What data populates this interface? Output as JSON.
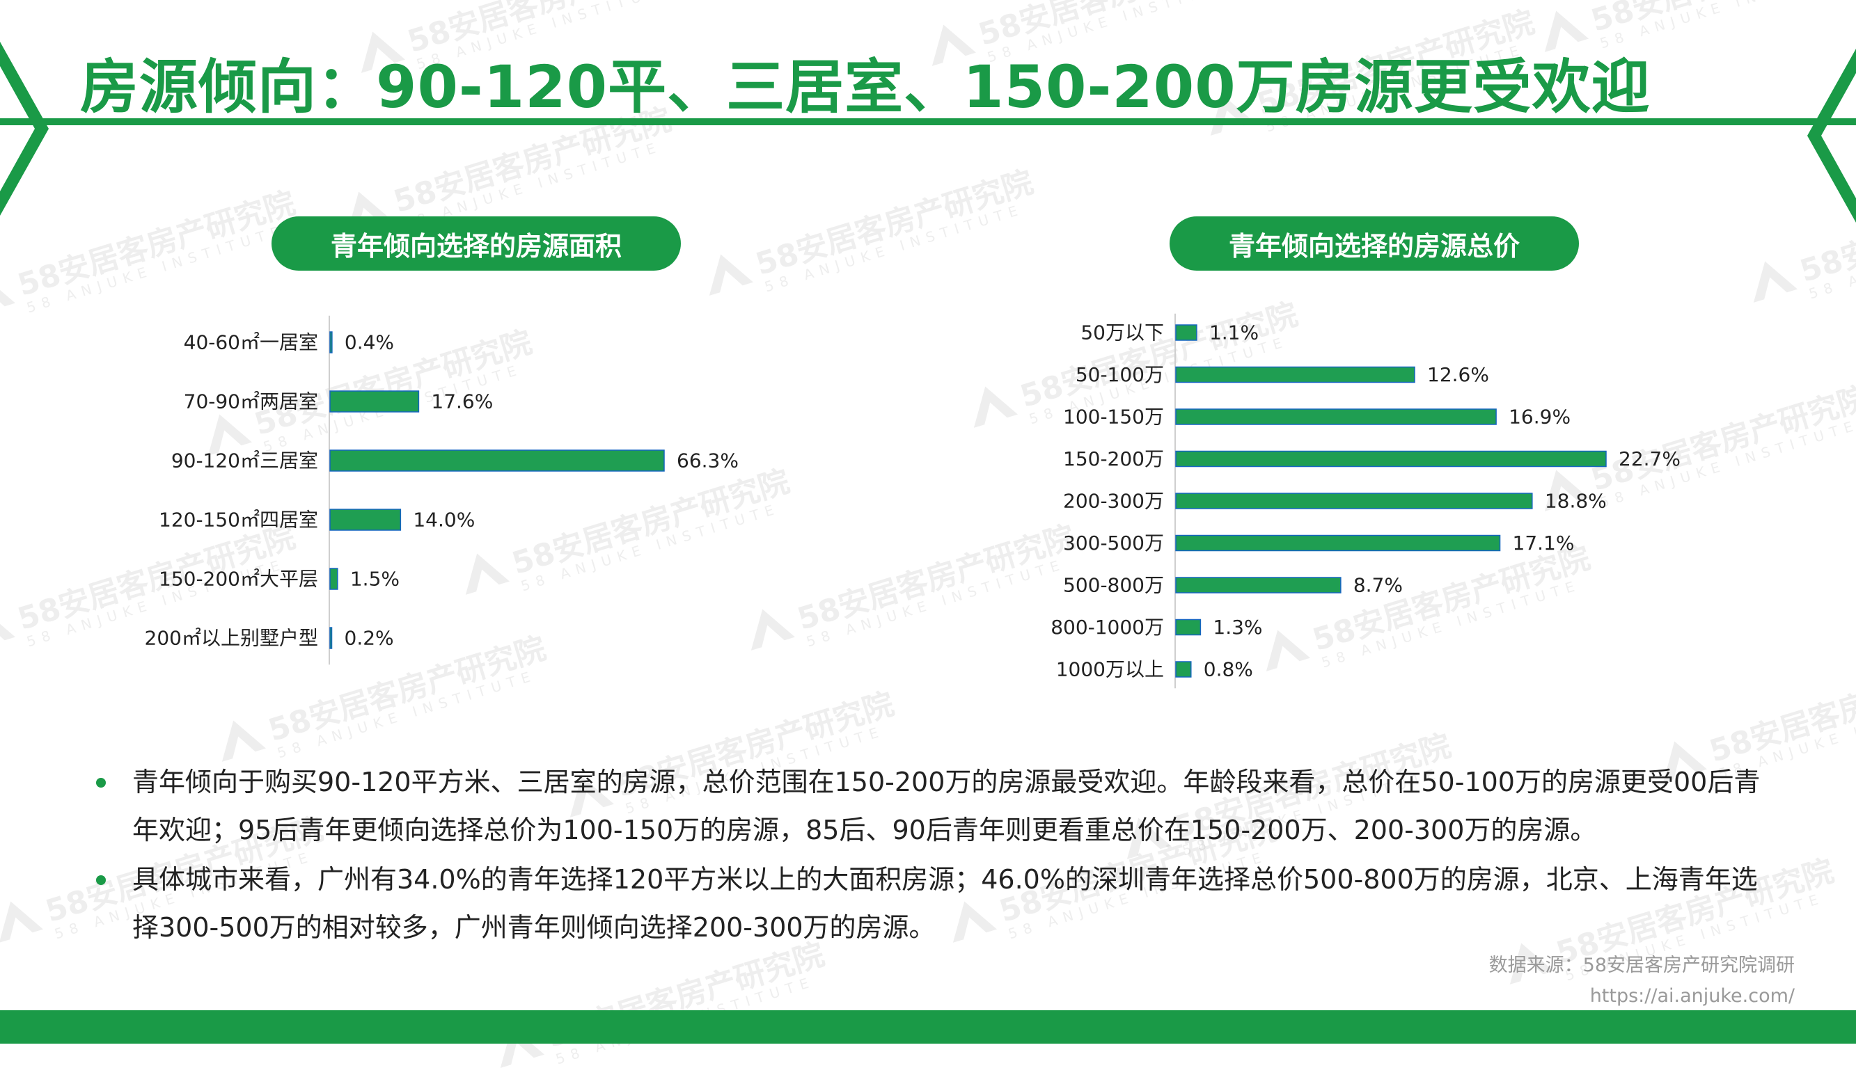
{
  "title": "房源倾向：90-120平、三居室、150-200万房源更受欢迎",
  "watermark": {
    "text": "58安居客房产研究院",
    "sub": "58 ANJUKE INSTITUTE"
  },
  "colors": {
    "brand": "#1a9a47",
    "bar": "#1f9e52",
    "bar_edge": "#1565c0"
  },
  "chart_data": [
    {
      "type": "bar",
      "orientation": "horizontal",
      "title": "青年倾向选择的房源面积",
      "categories": [
        "40-60㎡一居室",
        "70-90㎡两居室",
        "90-120㎡三居室",
        "120-150㎡四居室",
        "150-200㎡大平层",
        "200㎡以上别墅户型"
      ],
      "values": [
        0.4,
        17.6,
        66.3,
        14.0,
        1.5,
        0.2
      ],
      "value_labels": [
        "0.4%",
        "17.6%",
        "66.3%",
        "14.0%",
        "1.5%",
        "0.2%"
      ],
      "unit": "%",
      "xlim": [
        0,
        70
      ]
    },
    {
      "type": "bar",
      "orientation": "horizontal",
      "title": "青年倾向选择的房源总价",
      "categories": [
        "50万以下",
        "50-100万",
        "100-150万",
        "150-200万",
        "200-300万",
        "300-500万",
        "500-800万",
        "800-1000万",
        "1000万以上"
      ],
      "values": [
        1.1,
        12.6,
        16.9,
        22.7,
        18.8,
        17.1,
        8.7,
        1.3,
        0.8
      ],
      "value_labels": [
        "1.1%",
        "12.6%",
        "16.9%",
        "22.7%",
        "18.8%",
        "17.1%",
        "8.7%",
        "1.3%",
        "0.8%"
      ],
      "unit": "%",
      "xlim": [
        0,
        25
      ]
    }
  ],
  "bullets": [
    "青年倾向于购买90-120平方米、三居室的房源，总价范围在150-200万的房源最受欢迎。年龄段来看，总价在50-100万的房源更受00后青年欢迎；95后青年更倾向选择总价为100-150万的房源，85后、90后青年则更看重总价在150-200万、200-300万的房源。",
    "具体城市来看，广州有34.0%的青年选择120平方米以上的大面积房源；46.0%的深圳青年选择总价500-800万的房源，北京、上海青年选择300-500万的相对较多，广州青年则倾向选择200-300万的房源。"
  ],
  "source": {
    "line1": "数据来源：58安居客房产研究院调研",
    "line2": "https://ai.anjuke.com/"
  }
}
